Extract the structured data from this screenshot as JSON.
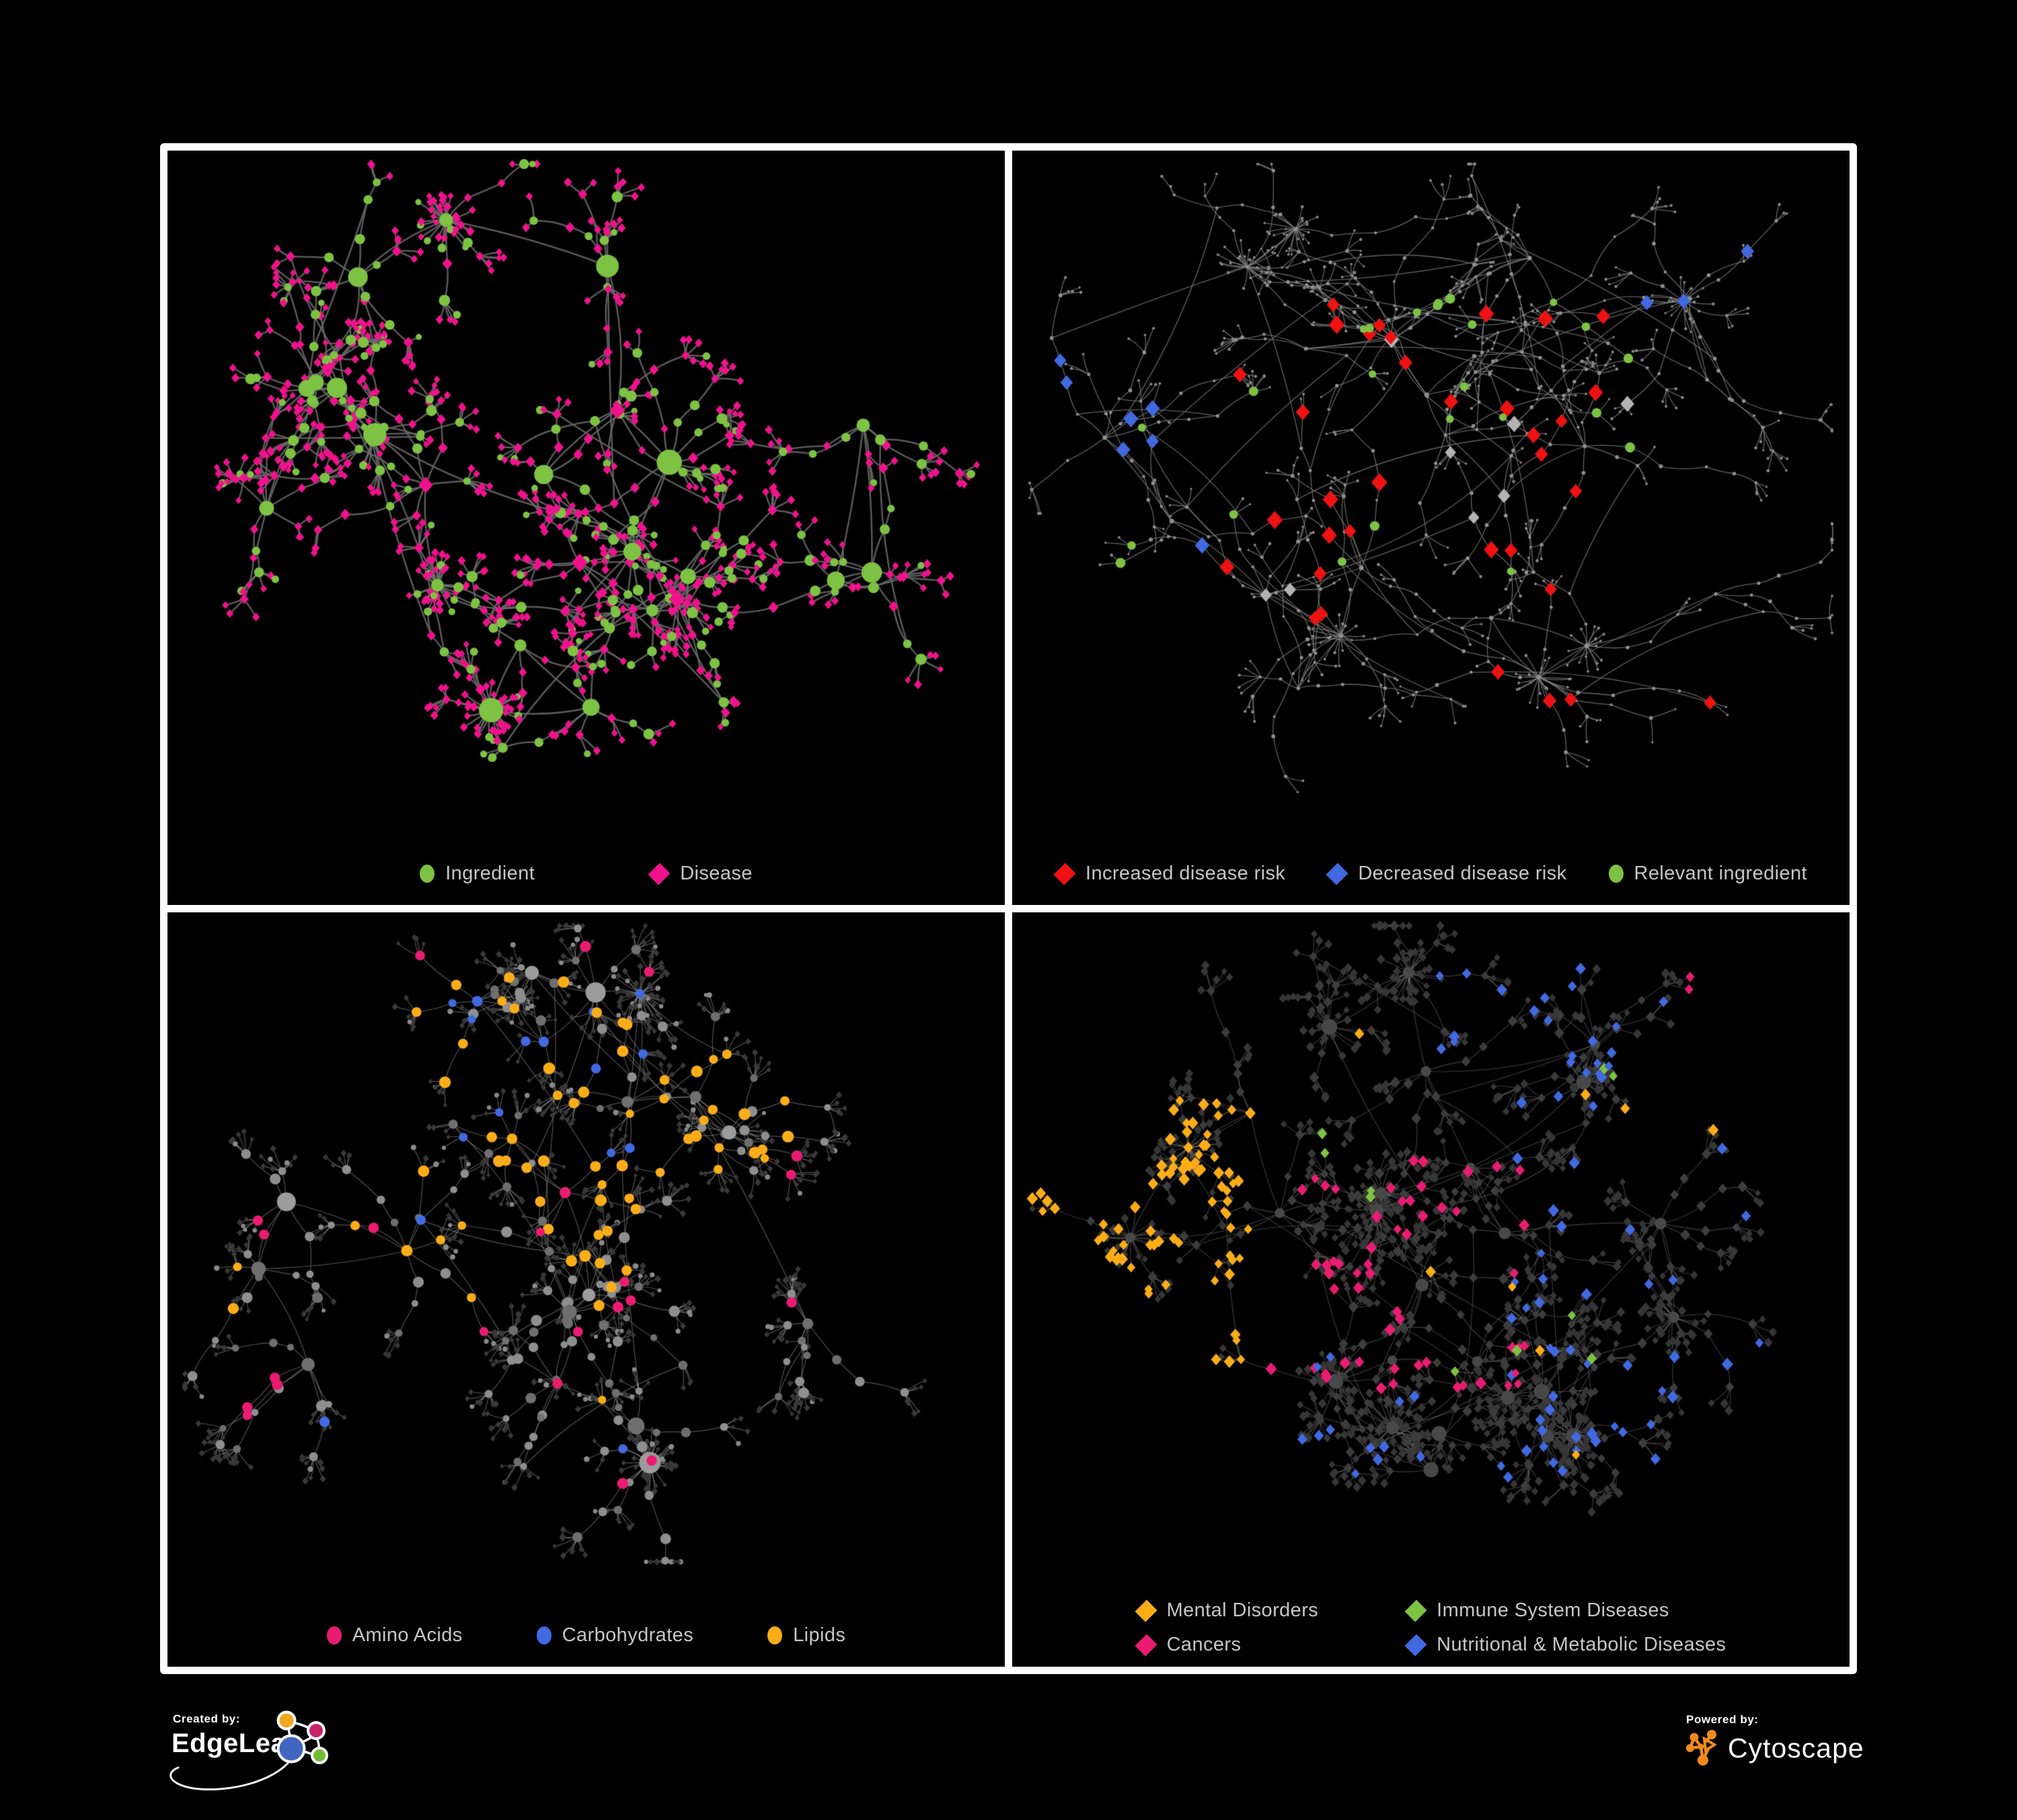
{
  "figure": {
    "background": "#000000",
    "frame_color": "#FFFFFF",
    "legend_text_color": "#C6C6C6"
  },
  "palette": {
    "green": "#7DC243",
    "magenta": "#F0128D",
    "pink": "#EA1C72",
    "red": "#EE1212",
    "blue": "#4169E1",
    "amber": "#FBAD18",
    "gray_light": "#B3B3B3",
    "gray_node": "#8F8F8F",
    "gray_dark": "#3B3B3B"
  },
  "panels": [
    {
      "id": "ingredient-disease",
      "legend_layout": "row1",
      "legend": [
        {
          "shape": "circle",
          "color": "#7DC243",
          "label": "Ingredient"
        },
        {
          "shape": "diamond",
          "color": "#F0128D",
          "label": "Disease"
        }
      ],
      "network": {
        "seed": 7,
        "hubs": 24,
        "spokes": [
          3,
          8
        ],
        "chain": [
          1,
          3
        ],
        "fan": [
          2,
          7
        ],
        "big_fan_prob": 0.18,
        "big_fan": [
          22,
          38
        ],
        "crosslinks": 40,
        "edge": {
          "color": "#6A6A6A",
          "width": 2.5,
          "alpha": 0.85
        },
        "roles": {
          "hub": [
            {
              "shape": "circle",
              "color": "#7DC243",
              "rmin": 9,
              "rmax": 19,
              "w": 0.7
            },
            {
              "shape": "diamond",
              "color": "#F0128D",
              "rmin": 9,
              "rmax": 13,
              "w": 0.3
            }
          ],
          "mid": [
            {
              "shape": "circle",
              "color": "#7DC243",
              "rmin": 5.5,
              "rmax": 8.5,
              "w": 0.42
            },
            {
              "shape": "diamond",
              "color": "#F0128D",
              "rmin": 5.5,
              "rmax": 7.5,
              "w": 0.58
            }
          ],
          "leaf": [
            {
              "shape": "diamond",
              "color": "#F0128D",
              "rmin": 4.5,
              "rmax": 6.2,
              "w": 0.86
            },
            {
              "shape": "circle",
              "color": "#7DC243",
              "rmin": 4.5,
              "rmax": 6.5,
              "w": 0.14
            }
          ]
        },
        "overlays": []
      }
    },
    {
      "id": "disease-risk",
      "legend_layout": "row3",
      "legend": [
        {
          "shape": "diamond",
          "color": "#EE1212",
          "label": "Increased disease risk"
        },
        {
          "shape": "diamond",
          "color": "#4169E1",
          "label": "Decreased disease risk"
        },
        {
          "shape": "circle",
          "color": "#7DC243",
          "label": "Relevant ingredient"
        }
      ],
      "network": {
        "seed": 23,
        "hubs": 26,
        "spokes": [
          2,
          7
        ],
        "chain": [
          2,
          5
        ],
        "fan": [
          2,
          5
        ],
        "big_fan_prob": 0.12,
        "big_fan": [
          16,
          28
        ],
        "crosslinks": 80,
        "edge": {
          "color": "#7A7A7A",
          "width": 1.3,
          "alpha": 0.8
        },
        "roles": {
          "hub": [
            {
              "shape": "circle",
              "color": "#8F8F8F",
              "rmin": 2.6,
              "rmax": 3.6,
              "w": 1
            }
          ],
          "mid": [
            {
              "shape": "circle",
              "color": "#8F8F8F",
              "rmin": 2.0,
              "rmax": 3.0,
              "w": 1
            }
          ],
          "leaf": [
            {
              "shape": "circle",
              "color": "#878787",
              "rmin": 1.6,
              "rmax": 2.4,
              "w": 1
            }
          ]
        },
        "overlays": [
          {
            "shape": "diamond",
            "color": "#EE1212",
            "rmin": 9,
            "rmax": 12,
            "count": 30,
            "roles": [
              "hub",
              "mid"
            ],
            "region": [
              0.25,
              0.18,
              0.75,
              0.72
            ]
          },
          {
            "shape": "diamond",
            "color": "#EE1212",
            "rmin": 9,
            "rmax": 11,
            "count": 4,
            "roles": [
              "hub",
              "mid"
            ],
            "region": [
              0.55,
              0.75,
              0.9,
              0.95
            ]
          },
          {
            "shape": "diamond",
            "color": "#4169E1",
            "rmin": 9,
            "rmax": 11,
            "count": 7,
            "roles": [
              "hub",
              "mid"
            ],
            "region": [
              0.05,
              0.3,
              0.3,
              0.62
            ]
          },
          {
            "shape": "diamond",
            "color": "#4169E1",
            "rmin": 9,
            "rmax": 11,
            "count": 3,
            "roles": [
              "hub",
              "mid"
            ],
            "region": [
              0.75,
              0.12,
              0.98,
              0.3
            ]
          },
          {
            "shape": "diamond",
            "color": "#B3B3B3",
            "rmin": 8,
            "rmax": 11,
            "count": 8,
            "roles": [
              "hub",
              "mid"
            ],
            "region": [
              0.2,
              0.28,
              0.75,
              0.72
            ]
          },
          {
            "shape": "circle",
            "color": "#7DC243",
            "rmin": 5.5,
            "rmax": 7.5,
            "count": 24,
            "roles": [
              "hub",
              "mid"
            ],
            "region": [
              0.12,
              0.2,
              0.8,
              0.68
            ]
          }
        ]
      }
    },
    {
      "id": "macronutrients",
      "legend_layout": "row3c",
      "legend": [
        {
          "shape": "circle",
          "color": "#EA1C72",
          "label": "Amino Acids"
        },
        {
          "shape": "circle",
          "color": "#4169E1",
          "label": "Carbohydrates"
        },
        {
          "shape": "circle",
          "color": "#FBAD18",
          "label": "Lipids"
        }
      ],
      "network": {
        "seed": 5,
        "hubs": 22,
        "spokes": [
          3,
          8
        ],
        "chain": [
          1,
          3
        ],
        "fan": [
          3,
          9
        ],
        "big_fan_prob": 0.16,
        "big_fan": [
          22,
          40
        ],
        "crosslinks": 50,
        "edge": {
          "color": "#A3A3A3",
          "width": 1.2,
          "alpha": 0.5
        },
        "roles": {
          "hub": [
            {
              "shape": "circle",
              "color": "#9C9C9C",
              "rmin": 9,
              "rmax": 16,
              "w": 0.62
            },
            {
              "shape": "circle",
              "color": "#6F6F6F",
              "rmin": 8,
              "rmax": 13,
              "w": 0.28
            },
            {
              "shape": "circle",
              "color": "#4D4D4D",
              "rmin": 8,
              "rmax": 12,
              "w": 0.1
            }
          ],
          "mid": [
            {
              "shape": "circle",
              "color": "#8E8E8E",
              "rmin": 5,
              "rmax": 8.5,
              "w": 0.68
            },
            {
              "shape": "circle",
              "color": "#6F6F6F",
              "rmin": 5,
              "rmax": 8,
              "w": 0.32
            }
          ],
          "leaf": [
            {
              "shape": "diamond",
              "color": "#383838",
              "rmin": 3.2,
              "rmax": 4.8,
              "w": 0.85
            },
            {
              "shape": "circle",
              "color": "#8A8A8A",
              "rmin": 3,
              "rmax": 4.2,
              "w": 0.15
            }
          ]
        },
        "overlays": [
          {
            "shape": "circle",
            "color": "#FBAD18",
            "rmin": 6.5,
            "rmax": 9,
            "count": 52,
            "roles": [
              "hub",
              "mid"
            ],
            "region": [
              0.28,
              0.08,
              0.75,
              0.55
            ]
          },
          {
            "shape": "circle",
            "color": "#FBAD18",
            "rmin": 6,
            "rmax": 8.5,
            "count": 14,
            "roles": [
              "hub",
              "mid"
            ],
            "region": [
              0.0,
              0.0,
              1,
              1
            ]
          },
          {
            "shape": "circle",
            "color": "#4169E1",
            "rmin": 6,
            "rmax": 8,
            "count": 12,
            "roles": [
              "hub",
              "mid"
            ],
            "region": [
              0.33,
              0.12,
              0.62,
              0.45
            ]
          },
          {
            "shape": "circle",
            "color": "#4169E1",
            "rmin": 6,
            "rmax": 8,
            "count": 4,
            "roles": [
              "hub",
              "mid"
            ],
            "region": [
              0.0,
              0.0,
              1,
              1
            ]
          },
          {
            "shape": "circle",
            "color": "#EA1C72",
            "rmin": 6.5,
            "rmax": 8.5,
            "count": 17,
            "roles": [
              "hub",
              "mid"
            ],
            "region": [
              0.05,
              0.45,
              0.95,
              0.98
            ]
          },
          {
            "shape": "circle",
            "color": "#EA1C72",
            "rmin": 6.5,
            "rmax": 8.5,
            "count": 6,
            "roles": [
              "hub",
              "mid"
            ],
            "region": [
              0.0,
              0.0,
              1,
              0.45
            ]
          }
        ]
      }
    },
    {
      "id": "disease-classes",
      "legend_layout": "grid2",
      "legend": [
        {
          "shape": "diamond",
          "color": "#FBAD18",
          "label": "Mental Disorders"
        },
        {
          "shape": "diamond",
          "color": "#7DC243",
          "label": "Immune System Diseases"
        },
        {
          "shape": "diamond",
          "color": "#EA1C72",
          "label": "Cancers"
        },
        {
          "shape": "diamond",
          "color": "#4169E1",
          "label": "Nutritional & Metabolic Diseases"
        }
      ],
      "network": {
        "seed": 42,
        "hubs": 26,
        "spokes": [
          3,
          8
        ],
        "chain": [
          1,
          3
        ],
        "fan": [
          3,
          8
        ],
        "big_fan_prob": 0.2,
        "big_fan": [
          18,
          34
        ],
        "crosslinks": 60,
        "edge": {
          "color": "#9C9C9C",
          "width": 1.1,
          "alpha": 0.4
        },
        "roles": {
          "hub": [
            {
              "shape": "circle",
              "color": "#484848",
              "rmin": 7,
              "rmax": 12,
              "w": 1
            }
          ],
          "mid": [
            {
              "shape": "diamond",
              "color": "#3C3C3C",
              "rmin": 5.5,
              "rmax": 7.5,
              "w": 1
            }
          ],
          "leaf": [
            {
              "shape": "diamond",
              "color": "#363636",
              "rmin": 4.5,
              "rmax": 6.5,
              "w": 1
            }
          ]
        },
        "overlays": [
          {
            "shape": "diamond",
            "color": "#FBAD18",
            "rmin": 6,
            "rmax": 8.5,
            "count": 80,
            "roles": [
              "hub",
              "mid",
              "leaf"
            ],
            "region": [
              0.02,
              0.28,
              0.32,
              0.68
            ]
          },
          {
            "shape": "diamond",
            "color": "#FBAD18",
            "rmin": 6,
            "rmax": 8,
            "count": 8,
            "roles": [
              "mid",
              "leaf"
            ],
            "region": [
              0.0,
              0.0,
              1,
              1
            ]
          },
          {
            "shape": "diamond",
            "color": "#EA1C72",
            "rmin": 6,
            "rmax": 8.5,
            "count": 55,
            "roles": [
              "hub",
              "mid",
              "leaf"
            ],
            "region": [
              0.3,
              0.35,
              0.62,
              0.72
            ]
          },
          {
            "shape": "diamond",
            "color": "#EA1C72",
            "rmin": 6,
            "rmax": 8,
            "count": 8,
            "roles": [
              "mid",
              "leaf"
            ],
            "region": [
              0.8,
              0.08,
              1,
              0.28
            ]
          },
          {
            "shape": "diamond",
            "color": "#4169E1",
            "rmin": 6,
            "rmax": 8.5,
            "count": 45,
            "roles": [
              "hub",
              "mid",
              "leaf"
            ],
            "region": [
              0.58,
              0.35,
              1,
              0.85
            ]
          },
          {
            "shape": "diamond",
            "color": "#4169E1",
            "rmin": 6,
            "rmax": 8,
            "count": 25,
            "roles": [
              "mid",
              "leaf"
            ],
            "region": [
              0.5,
              0.0,
              1,
              0.3
            ]
          },
          {
            "shape": "diamond",
            "color": "#4169E1",
            "rmin": 6,
            "rmax": 8,
            "count": 12,
            "roles": [
              "mid",
              "leaf"
            ],
            "region": [
              0.0,
              0.6,
              0.5,
              1
            ]
          },
          {
            "shape": "diamond",
            "color": "#7DC243",
            "rmin": 6,
            "rmax": 8,
            "count": 10,
            "roles": [
              "mid",
              "leaf"
            ],
            "region": [
              0.28,
              0.18,
              0.72,
              0.72
            ]
          }
        ]
      }
    }
  ],
  "footer": {
    "created_by": "Created by:",
    "edgeleap": "EdgeLeap",
    "powered_by": "Powered by:",
    "cytoscape": "Cytoscape"
  },
  "logos": {
    "edgeleap_icon": {
      "orange": "#F2A71F",
      "magenta": "#C52469",
      "blue": "#4166C0",
      "green": "#72BC35",
      "stroke": "#FFFFFF"
    },
    "cytoscape_icon": {
      "orange": "#EF8B1D"
    }
  }
}
